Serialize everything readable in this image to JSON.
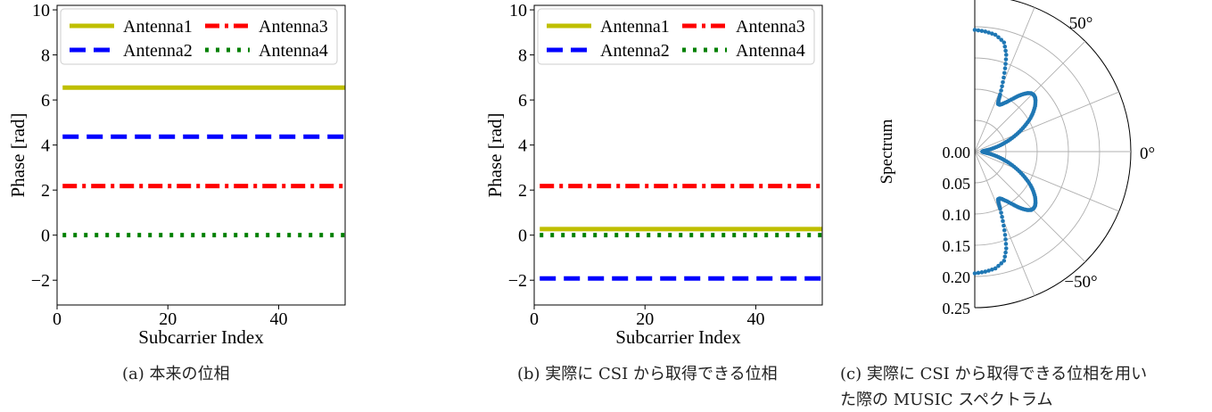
{
  "chart_data": [
    {
      "type": "line",
      "caption": "(a) 本来の位相",
      "xlabel": "Subcarrier Index",
      "ylabel": "Phase [rad]",
      "xlim": [
        0,
        52
      ],
      "ylim": [
        -3.1,
        10.2
      ],
      "xticks": [
        0,
        20,
        40
      ],
      "xtick_labels": [
        "0",
        "20",
        "40"
      ],
      "yticks": [
        -2,
        0,
        2,
        4,
        6,
        8,
        10
      ],
      "ytick_labels": [
        "−2",
        "0",
        "2",
        "4",
        "6",
        "8",
        "10"
      ],
      "legend": "top",
      "grid": false,
      "x": [
        1,
        52
      ],
      "series": [
        {
          "name": "Antenna1",
          "values": [
            6.55,
            6.55
          ],
          "color": "#bfbf00",
          "style": "solid"
        },
        {
          "name": "Antenna2",
          "values": [
            4.37,
            4.37
          ],
          "color": "#0000ff",
          "style": "dashed"
        },
        {
          "name": "Antenna3",
          "values": [
            2.18,
            2.18
          ],
          "color": "#ff0000",
          "style": "dashdot"
        },
        {
          "name": "Antenna4",
          "values": [
            0.0,
            0.0
          ],
          "color": "#008000",
          "style": "dotted"
        }
      ]
    },
    {
      "type": "line",
      "caption": "(b) 実際に CSI から取得できる位相",
      "xlabel": "Subcarrier Index",
      "ylabel": "Phase [rad]",
      "xlim": [
        0,
        52
      ],
      "ylim": [
        -3.1,
        10.2
      ],
      "xticks": [
        0,
        20,
        40
      ],
      "xtick_labels": [
        "0",
        "20",
        "40"
      ],
      "yticks": [
        -2,
        0,
        2,
        4,
        6,
        8,
        10
      ],
      "ytick_labels": [
        "−2",
        "0",
        "2",
        "4",
        "6",
        "8",
        "10"
      ],
      "legend": "top",
      "grid": false,
      "x": [
        1,
        52
      ],
      "series": [
        {
          "name": "Antenna1",
          "values": [
            0.27,
            0.27
          ],
          "color": "#bfbf00",
          "style": "solid"
        },
        {
          "name": "Antenna2",
          "values": [
            -1.92,
            -1.92
          ],
          "color": "#0000ff",
          "style": "dashed"
        },
        {
          "name": "Antenna3",
          "values": [
            2.18,
            2.18
          ],
          "color": "#ff0000",
          "style": "dashdot"
        },
        {
          "name": "Antenna4",
          "values": [
            0.0,
            0.0
          ],
          "color": "#008000",
          "style": "dotted"
        }
      ]
    },
    {
      "type": "scatter",
      "caption_lines": [
        "(c) 実際に CSI から取得できる位相を用い",
        "た際の MUSIC スペクトラム"
      ],
      "ylabel": "Spectrum",
      "coordinate": "polar-half",
      "theta_ticks": [
        "50°",
        "0°",
        "−50°"
      ],
      "r_ticks": [
        "0.00",
        "0.05",
        "0.10",
        "0.15",
        "0.20",
        "0.25"
      ],
      "rlim": [
        0,
        0.25
      ],
      "grid": true,
      "color": "#1f77b4",
      "series": [
        {
          "theta_deg": [
            90,
            85,
            80,
            75,
            72,
            70,
            68,
            66,
            65,
            64,
            62,
            60,
            57,
            54,
            52,
            50,
            48,
            46,
            44,
            42,
            40,
            37,
            34,
            31,
            28,
            25,
            22,
            19,
            16,
            13,
            10,
            7,
            4,
            0,
            -4,
            -7,
            -10,
            -13,
            -16,
            -19,
            -22,
            -25,
            -28,
            -31,
            -34,
            -37,
            -40,
            -42,
            -44,
            -46,
            -48,
            -50,
            -52,
            -54,
            -57,
            -60,
            -62,
            -64,
            -65,
            -66,
            -68,
            -70,
            -72,
            -75,
            -80,
            -85,
            -90
          ],
          "r": [
            0.195,
            0.193,
            0.19,
            0.181,
            0.163,
            0.142,
            0.12,
            0.1,
            0.09,
            0.085,
            0.085,
            0.088,
            0.095,
            0.105,
            0.113,
            0.12,
            0.126,
            0.13,
            0.131,
            0.13,
            0.127,
            0.121,
            0.113,
            0.104,
            0.093,
            0.082,
            0.071,
            0.06,
            0.049,
            0.039,
            0.029,
            0.02,
            0.014,
            0.012,
            0.014,
            0.02,
            0.029,
            0.039,
            0.049,
            0.06,
            0.071,
            0.082,
            0.093,
            0.104,
            0.113,
            0.121,
            0.127,
            0.13,
            0.131,
            0.13,
            0.126,
            0.12,
            0.113,
            0.105,
            0.095,
            0.088,
            0.085,
            0.085,
            0.09,
            0.1,
            0.12,
            0.142,
            0.163,
            0.181,
            0.19,
            0.193,
            0.195
          ]
        }
      ]
    }
  ]
}
